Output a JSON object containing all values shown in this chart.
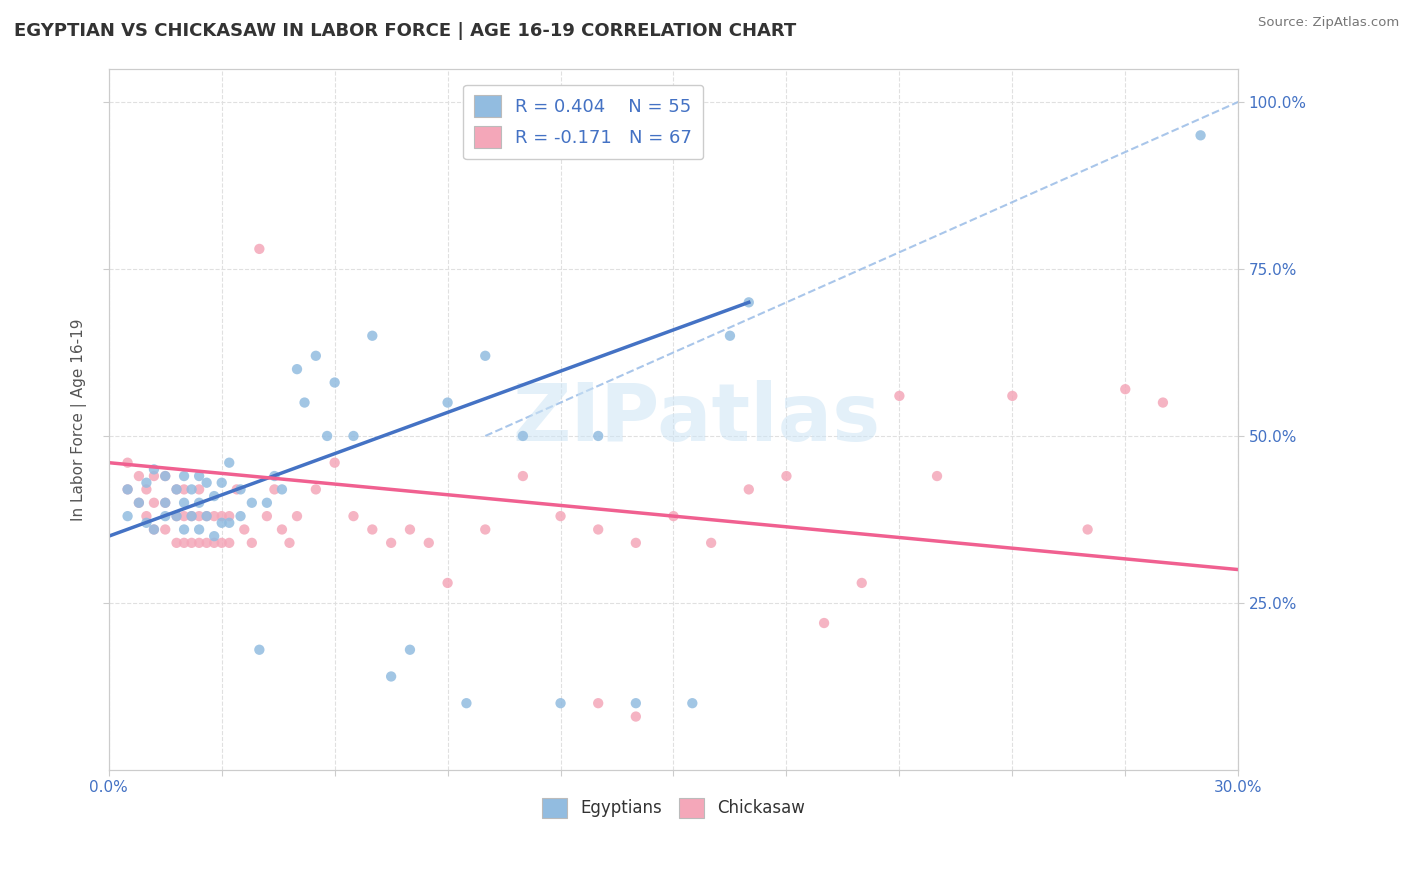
{
  "title": "EGYPTIAN VS CHICKASAW IN LABOR FORCE | AGE 16-19 CORRELATION CHART",
  "source": "Source: ZipAtlas.com",
  "ylabel": "In Labor Force | Age 16-19",
  "xlim": [
    0.0,
    0.3
  ],
  "ylim": [
    0.0,
    1.05
  ],
  "ytick_right_labels": [
    "25.0%",
    "50.0%",
    "75.0%",
    "100.0%"
  ],
  "blue_color": "#92bce0",
  "pink_color": "#f4a7b9",
  "blue_line_color": "#4472c4",
  "pink_line_color": "#f06090",
  "ref_line_color": "#a0c0e8",
  "watermark": "ZIPatlas",
  "background_color": "#ffffff",
  "grid_color": "#e0e0e0",
  "blue_scatter_x": [
    0.005,
    0.005,
    0.008,
    0.01,
    0.01,
    0.012,
    0.012,
    0.015,
    0.015,
    0.015,
    0.018,
    0.018,
    0.02,
    0.02,
    0.02,
    0.022,
    0.022,
    0.024,
    0.024,
    0.024,
    0.026,
    0.026,
    0.028,
    0.028,
    0.03,
    0.03,
    0.032,
    0.032,
    0.035,
    0.035,
    0.038,
    0.04,
    0.042,
    0.044,
    0.046,
    0.05,
    0.052,
    0.055,
    0.058,
    0.06,
    0.065,
    0.07,
    0.075,
    0.08,
    0.09,
    0.095,
    0.1,
    0.11,
    0.12,
    0.13,
    0.14,
    0.155,
    0.165,
    0.17,
    0.29
  ],
  "blue_scatter_y": [
    0.38,
    0.42,
    0.4,
    0.37,
    0.43,
    0.36,
    0.45,
    0.38,
    0.4,
    0.44,
    0.38,
    0.42,
    0.36,
    0.4,
    0.44,
    0.38,
    0.42,
    0.36,
    0.4,
    0.44,
    0.38,
    0.43,
    0.35,
    0.41,
    0.37,
    0.43,
    0.37,
    0.46,
    0.38,
    0.42,
    0.4,
    0.18,
    0.4,
    0.44,
    0.42,
    0.6,
    0.55,
    0.62,
    0.5,
    0.58,
    0.5,
    0.65,
    0.14,
    0.18,
    0.55,
    0.1,
    0.62,
    0.5,
    0.1,
    0.5,
    0.1,
    0.1,
    0.65,
    0.7,
    0.95
  ],
  "pink_scatter_x": [
    0.005,
    0.005,
    0.008,
    0.008,
    0.01,
    0.01,
    0.012,
    0.012,
    0.012,
    0.015,
    0.015,
    0.015,
    0.018,
    0.018,
    0.018,
    0.02,
    0.02,
    0.02,
    0.022,
    0.022,
    0.024,
    0.024,
    0.024,
    0.026,
    0.026,
    0.028,
    0.028,
    0.03,
    0.03,
    0.032,
    0.032,
    0.034,
    0.036,
    0.038,
    0.04,
    0.042,
    0.044,
    0.046,
    0.048,
    0.05,
    0.055,
    0.06,
    0.065,
    0.07,
    0.075,
    0.08,
    0.085,
    0.09,
    0.1,
    0.11,
    0.12,
    0.13,
    0.14,
    0.15,
    0.16,
    0.19,
    0.2,
    0.21,
    0.22,
    0.24,
    0.26,
    0.27,
    0.28,
    0.17,
    0.18,
    0.13,
    0.14
  ],
  "pink_scatter_y": [
    0.42,
    0.46,
    0.4,
    0.44,
    0.38,
    0.42,
    0.36,
    0.4,
    0.44,
    0.36,
    0.4,
    0.44,
    0.34,
    0.38,
    0.42,
    0.34,
    0.38,
    0.42,
    0.34,
    0.38,
    0.34,
    0.38,
    0.42,
    0.34,
    0.38,
    0.34,
    0.38,
    0.34,
    0.38,
    0.34,
    0.38,
    0.42,
    0.36,
    0.34,
    0.78,
    0.38,
    0.42,
    0.36,
    0.34,
    0.38,
    0.42,
    0.46,
    0.38,
    0.36,
    0.34,
    0.36,
    0.34,
    0.28,
    0.36,
    0.44,
    0.38,
    0.36,
    0.34,
    0.38,
    0.34,
    0.22,
    0.28,
    0.56,
    0.44,
    0.56,
    0.36,
    0.57,
    0.55,
    0.42,
    0.44,
    0.1,
    0.08
  ],
  "blue_line_x0": 0.0,
  "blue_line_y0": 0.35,
  "blue_line_x1": 0.17,
  "blue_line_y1": 0.7,
  "pink_line_x0": 0.0,
  "pink_line_y0": 0.46,
  "pink_line_x1": 0.3,
  "pink_line_y1": 0.3,
  "ref_line_x0": 0.1,
  "ref_line_y0": 0.5,
  "ref_line_x1": 0.3,
  "ref_line_y1": 1.0
}
